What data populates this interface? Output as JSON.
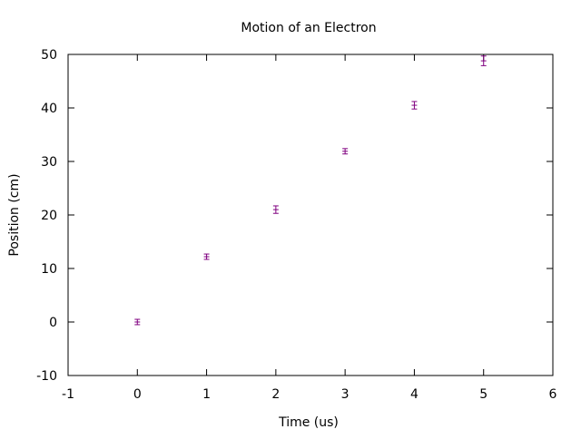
{
  "chart_data": {
    "type": "scatter",
    "title": "Motion of an Electron",
    "xlabel": "Time (us)",
    "ylabel": "Position (cm)",
    "xlim": [
      -1,
      6
    ],
    "ylim": [
      -10,
      50
    ],
    "x_ticks": [
      -1,
      0,
      1,
      2,
      3,
      4,
      5,
      6
    ],
    "y_ticks": [
      -10,
      0,
      10,
      20,
      30,
      40,
      50
    ],
    "grid": false,
    "error_bars": true,
    "series": [
      {
        "color": "#800080",
        "points": [
          {
            "x": 0,
            "y": 0.0,
            "err": 0.5
          },
          {
            "x": 1,
            "y": 12.2,
            "err": 0.5
          },
          {
            "x": 2,
            "y": 21.0,
            "err": 0.7
          },
          {
            "x": 3,
            "y": 31.9,
            "err": 0.5
          },
          {
            "x": 4,
            "y": 40.5,
            "err": 0.7
          },
          {
            "x": 5,
            "y": 48.8,
            "err": 0.9
          }
        ]
      }
    ]
  }
}
